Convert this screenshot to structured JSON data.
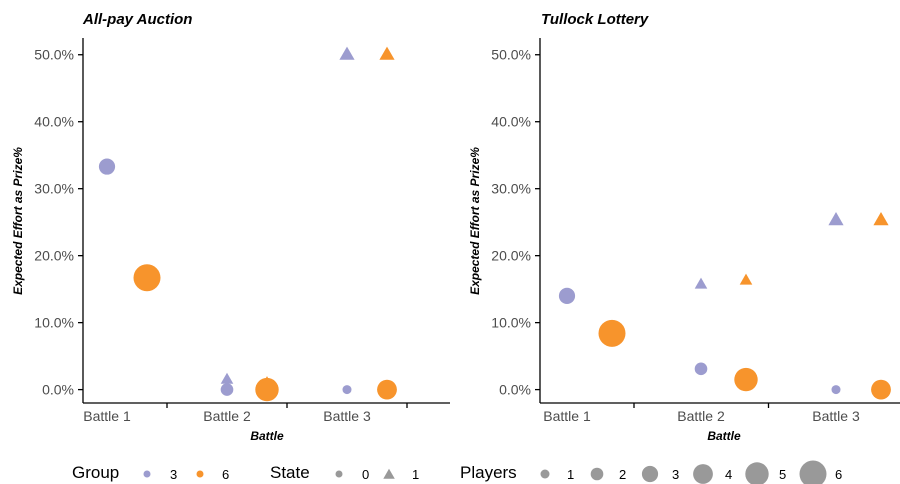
{
  "colors": {
    "group_3": "#9C9CCF",
    "group_6": "#F7942C",
    "legend_gray": "#999999"
  },
  "chart_data": [
    {
      "type": "scatter",
      "title": "All-pay Auction",
      "xlabel": "Battle",
      "ylabel": "Expected Effort as Prize%",
      "categories": [
        "Battle 1",
        "Battle 2",
        "Battle 3"
      ],
      "ylim": [
        -0.02,
        0.525
      ],
      "yticks": [
        0,
        0.1,
        0.2,
        0.3,
        0.4,
        0.5
      ],
      "ytick_labels": [
        "0.0%",
        "10.0%",
        "20.0%",
        "30.0%",
        "40.0%",
        "50.0%"
      ],
      "grid": false,
      "points": [
        {
          "battle": "Battle 1",
          "group": "3",
          "state": "0",
          "players": 3,
          "y": 0.333
        },
        {
          "battle": "Battle 1",
          "group": "6",
          "state": "0",
          "players": 6,
          "y": 0.167
        },
        {
          "battle": "Battle 2",
          "group": "3",
          "state": "0",
          "players": 2,
          "y": 0.0
        },
        {
          "battle": "Battle 2",
          "group": "3",
          "state": "1",
          "players": 1,
          "y": 0.015
        },
        {
          "battle": "Battle 2",
          "group": "6",
          "state": "0",
          "players": 5,
          "y": 0.0
        },
        {
          "battle": "Battle 2",
          "group": "6",
          "state": "1",
          "players": 1,
          "y": 0.01
        },
        {
          "battle": "Battle 3",
          "group": "3",
          "state": "0",
          "players": 1,
          "y": 0.0
        },
        {
          "battle": "Battle 3",
          "group": "3",
          "state": "1",
          "players": 2,
          "y": 0.5
        },
        {
          "battle": "Battle 3",
          "group": "6",
          "state": "0",
          "players": 4,
          "y": 0.0
        },
        {
          "battle": "Battle 3",
          "group": "6",
          "state": "1",
          "players": 2,
          "y": 0.5
        }
      ]
    },
    {
      "type": "scatter",
      "title": "Tullock Lottery",
      "xlabel": "Battle",
      "ylabel": "Expected Effort as Prize%",
      "categories": [
        "Battle 1",
        "Battle 2",
        "Battle 3"
      ],
      "ylim": [
        -0.02,
        0.525
      ],
      "yticks": [
        0,
        0.1,
        0.2,
        0.3,
        0.4,
        0.5
      ],
      "ytick_labels": [
        "0.0%",
        "10.0%",
        "20.0%",
        "30.0%",
        "40.0%",
        "50.0%"
      ],
      "grid": false,
      "points": [
        {
          "battle": "Battle 1",
          "group": "3",
          "state": "0",
          "players": 3,
          "y": 0.14
        },
        {
          "battle": "Battle 1",
          "group": "6",
          "state": "0",
          "players": 6,
          "y": 0.084
        },
        {
          "battle": "Battle 2",
          "group": "3",
          "state": "0",
          "players": 2,
          "y": 0.031
        },
        {
          "battle": "Battle 2",
          "group": "3",
          "state": "1",
          "players": 1,
          "y": 0.157
        },
        {
          "battle": "Battle 2",
          "group": "6",
          "state": "0",
          "players": 5,
          "y": 0.015
        },
        {
          "battle": "Battle 2",
          "group": "6",
          "state": "1",
          "players": 1,
          "y": 0.163
        },
        {
          "battle": "Battle 3",
          "group": "3",
          "state": "0",
          "players": 1,
          "y": 0.0
        },
        {
          "battle": "Battle 3",
          "group": "3",
          "state": "1",
          "players": 2,
          "y": 0.253
        },
        {
          "battle": "Battle 3",
          "group": "6",
          "state": "0",
          "players": 4,
          "y": 0.0
        },
        {
          "battle": "Battle 3",
          "group": "6",
          "state": "1",
          "players": 2,
          "y": 0.253
        }
      ]
    }
  ],
  "legend": {
    "position": "bottom",
    "group": {
      "title": "Group",
      "items": [
        "3",
        "6"
      ]
    },
    "state": {
      "title": "State",
      "items": [
        "0",
        "1"
      ]
    },
    "players": {
      "title": "Players",
      "items": [
        "1",
        "2",
        "3",
        "4",
        "5",
        "6"
      ]
    }
  }
}
